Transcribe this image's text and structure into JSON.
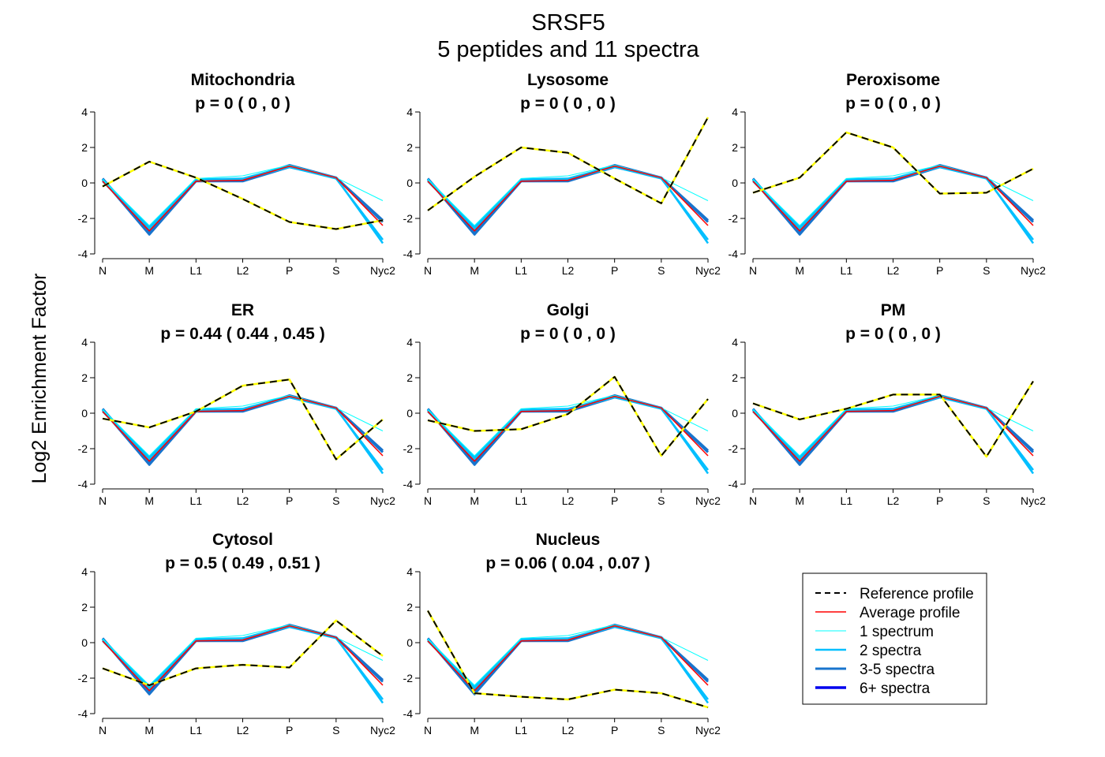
{
  "figure": {
    "title_line1": "SRSF5",
    "title_line2": "5  peptides and  11  spectra",
    "ylabel": "Log2 Enrichment Factor"
  },
  "colors": {
    "reference_dash": "#000000",
    "reference_under": "#ffff00",
    "average": "#ff0000",
    "spectrum_1": "#00ffff",
    "spectra_2": "#00bfff",
    "spectra_3_5": "#1874cd",
    "spectra_6plus": "#0000ee"
  },
  "legend": {
    "items": [
      {
        "label": "Reference profile",
        "style": "reference"
      },
      {
        "label": "Average profile",
        "style": "average"
      },
      {
        "label": "1 spectrum",
        "style": "spectrum_1"
      },
      {
        "label": "2 spectra",
        "style": "spectra_2"
      },
      {
        "label": "3-5 spectra",
        "style": "spectra_3_5"
      },
      {
        "label": "6+ spectra",
        "style": "spectra_6plus"
      }
    ]
  },
  "chart_data": {
    "type": "line",
    "categories": [
      "N",
      "M",
      "L1",
      "L2",
      "P",
      "S",
      "Nyc2"
    ],
    "ylim": [
      -4,
      4
    ],
    "yticks": [
      -4,
      -2,
      0,
      2,
      4
    ],
    "grid": false,
    "legend_position": "bottom-right",
    "peptide_profiles": [
      {
        "name": "1 spectrum",
        "values": [
          0.2,
          -2.4,
          0.25,
          0.4,
          1.0,
          0.3,
          -1.0
        ]
      },
      {
        "name": "2 spectra",
        "values": [
          0.2,
          -2.5,
          0.2,
          0.25,
          0.95,
          0.3,
          -3.4
        ]
      },
      {
        "name": "2 spectra",
        "values": [
          0.1,
          -2.6,
          0.15,
          0.2,
          0.9,
          0.25,
          -3.2
        ]
      },
      {
        "name": "3-5 spectra",
        "values": [
          0.2,
          -2.9,
          0.1,
          0.1,
          0.9,
          0.3,
          -2.1
        ]
      },
      {
        "name": "3-5 spectra",
        "values": [
          0.25,
          -2.8,
          0.15,
          0.15,
          1.0,
          0.3,
          -2.2
        ]
      }
    ],
    "average_profile": [
      0.1,
      -2.7,
      0.1,
      0.15,
      0.95,
      0.3,
      -2.4
    ],
    "panels": [
      {
        "title": "Mitochondria",
        "p_text": "p =  0  ( 0 ,  0 )",
        "reference": [
          -0.2,
          1.2,
          0.3,
          -0.9,
          -2.2,
          -2.6,
          -2.1
        ]
      },
      {
        "title": "Lysosome",
        "p_text": "p =  0  ( 0 ,  0 )",
        "reference": [
          -1.55,
          0.35,
          2.0,
          1.7,
          0.25,
          -1.15,
          3.7
        ]
      },
      {
        "title": "Peroxisome",
        "p_text": "p =  0  ( 0 ,  0 )",
        "reference": [
          -0.55,
          0.3,
          2.85,
          2.0,
          -0.6,
          -0.55,
          0.8
        ]
      },
      {
        "title": "ER",
        "p_text": "p =  0.44  ( 0.44 ,  0.45 )",
        "reference": [
          -0.3,
          -0.8,
          0.1,
          1.55,
          1.9,
          -2.6,
          -0.35
        ]
      },
      {
        "title": "Golgi",
        "p_text": "p =  0  ( 0 ,  0 )",
        "reference": [
          -0.4,
          -1.0,
          -0.9,
          -0.05,
          2.05,
          -2.4,
          0.8
        ]
      },
      {
        "title": "PM",
        "p_text": "p =  0  ( 0 ,  0 )",
        "reference": [
          0.55,
          -0.35,
          0.25,
          1.05,
          1.05,
          -2.45,
          1.8
        ]
      },
      {
        "title": "Cytosol",
        "p_text": "p =  0.5  ( 0.49 ,  0.51 )",
        "reference": [
          -1.45,
          -2.4,
          -1.45,
          -1.25,
          -1.4,
          1.25,
          -0.75
        ]
      },
      {
        "title": "Nucleus",
        "p_text": "p =  0.06  ( 0.04 ,  0.07 )",
        "reference": [
          1.8,
          -2.85,
          -3.05,
          -3.2,
          -2.65,
          -2.85,
          -3.65
        ]
      }
    ]
  }
}
